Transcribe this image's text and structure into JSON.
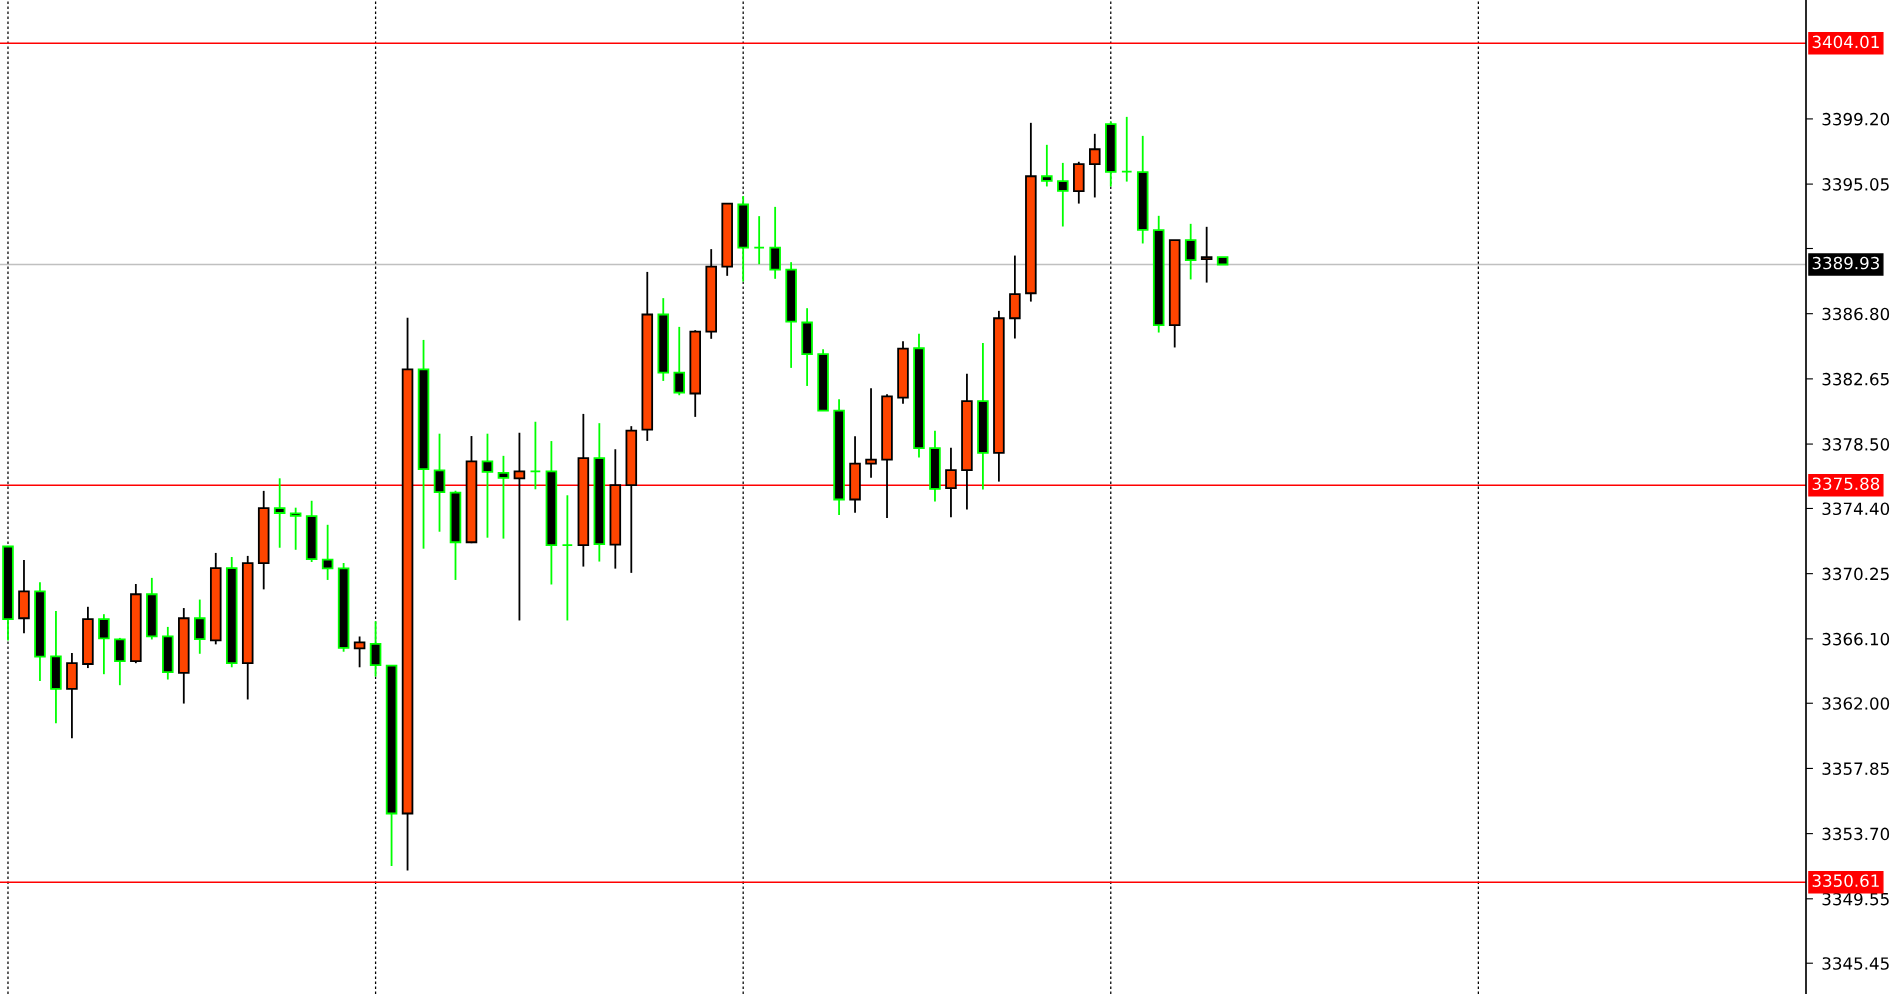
{
  "chart_data": {
    "type": "candlestick",
    "categories": [
      null,
      null,
      null,
      null,
      null,
      null,
      null,
      null,
      null,
      null,
      null,
      null,
      null,
      null,
      null,
      null,
      null,
      null,
      null,
      null,
      null,
      null,
      null,
      null,
      null,
      null,
      null,
      null,
      null,
      null,
      null,
      null,
      null,
      null,
      null,
      null,
      null,
      null,
      null,
      null,
      null,
      null,
      null,
      null,
      null,
      null,
      null,
      null,
      null,
      null,
      null,
      null,
      null,
      null,
      null,
      null,
      null,
      null,
      null,
      null,
      null,
      null,
      null,
      null,
      null,
      null,
      null,
      null,
      null,
      null,
      null,
      null,
      null,
      null,
      null,
      null,
      null,
      null,
      null,
      null,
      null,
      null,
      null,
      null,
      null,
      null,
      null,
      null,
      null,
      null,
      null,
      null,
      null,
      null,
      null,
      null,
      null,
      null,
      null,
      null,
      null,
      null,
      null,
      null,
      null,
      null,
      null,
      null,
      null,
      null,
      null,
      null,
      null
    ],
    "ohlc": [
      [
        3371.98,
        3371.98,
        3366.0,
        3367.36
      ],
      [
        3367.41,
        3371.12,
        3366.45,
        3369.12
      ],
      [
        3369.12,
        3369.7,
        3363.41,
        3364.97
      ],
      [
        3364.99,
        3367.88,
        3360.73,
        3362.91
      ],
      [
        3362.91,
        3365.2,
        3359.77,
        3364.55
      ],
      [
        3364.5,
        3368.14,
        3364.24,
        3367.36
      ],
      [
        3367.36,
        3367.67,
        3363.85,
        3366.13
      ],
      [
        3366.06,
        3366.16,
        3363.15,
        3364.68
      ],
      [
        3364.68,
        3369.59,
        3364.55,
        3368.94
      ],
      [
        3368.94,
        3369.98,
        3366.06,
        3366.26
      ],
      [
        3366.26,
        3366.86,
        3363.51,
        3363.98
      ],
      [
        3363.93,
        3368.06,
        3361.98,
        3367.41
      ],
      [
        3367.41,
        3368.6,
        3365.15,
        3366.08
      ],
      [
        3366.0,
        3371.57,
        3365.75,
        3370.6
      ],
      [
        3370.6,
        3371.31,
        3364.29,
        3364.55
      ],
      [
        3364.55,
        3371.38,
        3362.24,
        3370.92
      ],
      [
        3370.92,
        3375.52,
        3369.25,
        3374.42
      ],
      [
        3374.42,
        3376.32,
        3371.9,
        3374.11
      ],
      [
        3374.09,
        3374.45,
        3371.77,
        3373.93
      ],
      [
        3373.91,
        3374.89,
        3370.99,
        3371.18
      ],
      [
        3371.14,
        3373.36,
        3369.85,
        3370.58
      ],
      [
        3370.58,
        3370.93,
        3365.28,
        3365.52
      ],
      [
        3365.49,
        3366.25,
        3364.29,
        3365.87
      ],
      [
        3365.78,
        3367.22,
        3363.7,
        3364.43
      ],
      [
        3364.4,
        3364.4,
        3351.64,
        3354.98
      ],
      [
        3354.98,
        3386.54,
        3351.35,
        3383.26
      ],
      [
        3383.26,
        3385.13,
        3371.84,
        3376.91
      ],
      [
        3376.82,
        3379.16,
        3372.92,
        3375.44
      ],
      [
        3375.41,
        3375.53,
        3369.85,
        3372.25
      ],
      [
        3372.25,
        3379.01,
        3372.19,
        3377.4
      ],
      [
        3377.4,
        3379.16,
        3372.54,
        3376.73
      ],
      [
        3376.67,
        3377.75,
        3372.48,
        3376.35
      ],
      [
        3376.32,
        3379.22,
        3367.27,
        3376.76
      ],
      [
        3376.76,
        3379.92,
        3375.62,
        3376.76
      ],
      [
        3376.76,
        3378.69,
        3369.56,
        3372.07
      ],
      [
        3372.07,
        3375.24,
        3367.27,
        3372.07
      ],
      [
        3372.07,
        3380.42,
        3370.7,
        3377.61
      ],
      [
        3377.61,
        3379.83,
        3371.02,
        3372.13
      ],
      [
        3372.1,
        3378.17,
        3370.57,
        3375.88
      ],
      [
        3375.88,
        3379.64,
        3370.3,
        3379.36
      ],
      [
        3379.42,
        3389.46,
        3378.7,
        3386.75
      ],
      [
        3386.75,
        3387.79,
        3382.52,
        3383.05
      ],
      [
        3383.05,
        3385.96,
        3381.61,
        3381.78
      ],
      [
        3381.72,
        3385.75,
        3380.23,
        3385.66
      ],
      [
        3385.66,
        3390.91,
        3385.2,
        3389.8
      ],
      [
        3389.8,
        3393.81,
        3389.21,
        3393.81
      ],
      [
        3393.75,
        3394.28,
        3388.85,
        3391.01
      ],
      [
        3391.01,
        3393.01,
        3389.95,
        3391.01
      ],
      [
        3391.01,
        3393.6,
        3389.02,
        3389.61
      ],
      [
        3389.61,
        3390.08,
        3383.35,
        3386.3
      ],
      [
        3386.24,
        3387.15,
        3382.2,
        3384.22
      ],
      [
        3384.22,
        3384.54,
        3380.63,
        3380.63
      ],
      [
        3380.63,
        3381.36,
        3373.99,
        3374.97
      ],
      [
        3374.97,
        3379.0,
        3374.12,
        3377.26
      ],
      [
        3377.26,
        3382.06,
        3376.35,
        3377.51
      ],
      [
        3377.51,
        3381.67,
        3373.8,
        3381.53
      ],
      [
        3381.46,
        3385.05,
        3381.06,
        3384.58
      ],
      [
        3384.6,
        3385.52,
        3377.64,
        3378.24
      ],
      [
        3378.24,
        3379.34,
        3374.84,
        3375.65
      ],
      [
        3375.69,
        3378.26,
        3373.84,
        3376.84
      ],
      [
        3376.84,
        3382.97,
        3374.33,
        3381.23
      ],
      [
        3381.23,
        3384.94,
        3375.6,
        3377.94
      ],
      [
        3377.94,
        3386.98,
        3376.11,
        3386.51
      ],
      [
        3386.51,
        3390.5,
        3385.22,
        3388.04
      ],
      [
        3388.1,
        3398.95,
        3387.57,
        3395.55
      ],
      [
        3395.55,
        3397.55,
        3394.9,
        3395.26
      ],
      [
        3395.24,
        3396.4,
        3392.35,
        3394.62
      ],
      [
        3394.6,
        3396.47,
        3393.81,
        3396.32
      ],
      [
        3396.32,
        3398.25,
        3394.2,
        3397.27
      ],
      [
        3398.87,
        3399.03,
        3394.9,
        3395.83
      ],
      [
        3395.85,
        3399.33,
        3395.21,
        3395.85
      ],
      [
        3395.81,
        3398.12,
        3391.27,
        3392.14
      ],
      [
        3392.12,
        3393.03,
        3385.6,
        3386.07
      ],
      [
        3386.07,
        3391.48,
        3384.65,
        3391.48
      ],
      [
        3391.48,
        3392.52,
        3388.98,
        3390.21
      ],
      [
        3390.27,
        3392.33,
        3388.78,
        3390.4
      ],
      [
        3390.4,
        3390.4,
        3389.93,
        3389.93
      ],
      null,
      null,
      null,
      null,
      null,
      null,
      null,
      null,
      null,
      null,
      null,
      null,
      null,
      null,
      null,
      null,
      null,
      null,
      null,
      null,
      null,
      null,
      null,
      null,
      null,
      null,
      null,
      null,
      null,
      null,
      null,
      null,
      null,
      null,
      null,
      null
    ],
    "colors": [
      "#000000",
      "#ff4500",
      "#000000",
      "#000000",
      "#ff4500",
      "#ff4500",
      "#000000",
      "#000000",
      "#ff4500",
      "#000000",
      "#000000",
      "#ff4500",
      "#000000",
      "#ff4500",
      "#000000",
      "#ff4500",
      "#ff4500",
      "#000000",
      "#000000",
      "#000000",
      "#000000",
      "#000000",
      "#ff4500",
      "#000000",
      "#000000",
      "#ff4500",
      "#000000",
      "#000000",
      "#000000",
      "#ff4500",
      "#000000",
      "#000000",
      "#ff4500",
      "#00ff00",
      "#000000",
      "#00ff00",
      "#ff4500",
      "#000000",
      "#ff4500",
      "#ff4500",
      "#ff4500",
      "#000000",
      "#000000",
      "#ff4500",
      "#ff4500",
      "#ff4500",
      "#000000",
      "#00ff00",
      "#000000",
      "#000000",
      "#000000",
      "#000000",
      "#000000",
      "#ff4500",
      "#ff4500",
      "#ff4500",
      "#ff4500",
      "#000000",
      "#000000",
      "#ff4500",
      "#ff4500",
      "#000000",
      "#ff4500",
      "#ff4500",
      "#ff4500",
      "#000000",
      "#000000",
      "#ff4500",
      "#ff4500",
      "#000000",
      "#00ff00",
      "#000000",
      "#000000",
      "#ff4500",
      "#000000",
      "#ff4500",
      "#000000",
      null,
      null,
      null,
      null,
      null,
      null,
      null,
      null,
      null,
      null,
      null,
      null,
      null,
      null,
      null,
      null,
      null,
      null,
      null,
      null,
      null,
      null,
      null,
      null,
      null,
      null,
      null,
      null,
      null,
      null,
      null,
      null,
      null,
      null,
      null,
      null
    ],
    "ylim": [
      3343.49,
      3406.77
    ],
    "yticks": [
      {
        "value": 3345.45,
        "label": "3345.45"
      },
      {
        "value": 3349.55,
        "label": "3349.55"
      },
      {
        "value": 3353.7,
        "label": "3353.70"
      },
      {
        "value": 3357.85,
        "label": "3357.85"
      },
      {
        "value": 3362.0,
        "label": "3362.00"
      },
      {
        "value": 3366.1,
        "label": "3366.10"
      },
      {
        "value": 3370.25,
        "label": "3370.25"
      },
      {
        "value": 3374.4,
        "label": "3374.40"
      },
      {
        "value": 3378.5,
        "label": "3378.50"
      },
      {
        "value": 3382.65,
        "label": "3382.65"
      },
      {
        "value": 3386.8,
        "label": "3386.80"
      },
      {
        "value": 3390.95,
        "label": null
      },
      {
        "value": 3395.05,
        "label": "3395.05"
      },
      {
        "value": 3399.2,
        "label": "3399.20"
      }
    ],
    "ref_lines": [
      {
        "axis": "y",
        "value": 3404.01,
        "label": "3404.01",
        "color": "#ff0000"
      },
      {
        "axis": "y",
        "value": 3389.93,
        "label": "3389.93",
        "color": "#c0c0c0"
      },
      {
        "axis": "y",
        "value": 3375.88,
        "label": "3375.88",
        "color": "#ff0000"
      },
      {
        "axis": "y",
        "value": 3350.61,
        "label": "3350.61",
        "color": "#ff0000"
      }
    ],
    "grid": "x",
    "tick_labels": "y"
  }
}
